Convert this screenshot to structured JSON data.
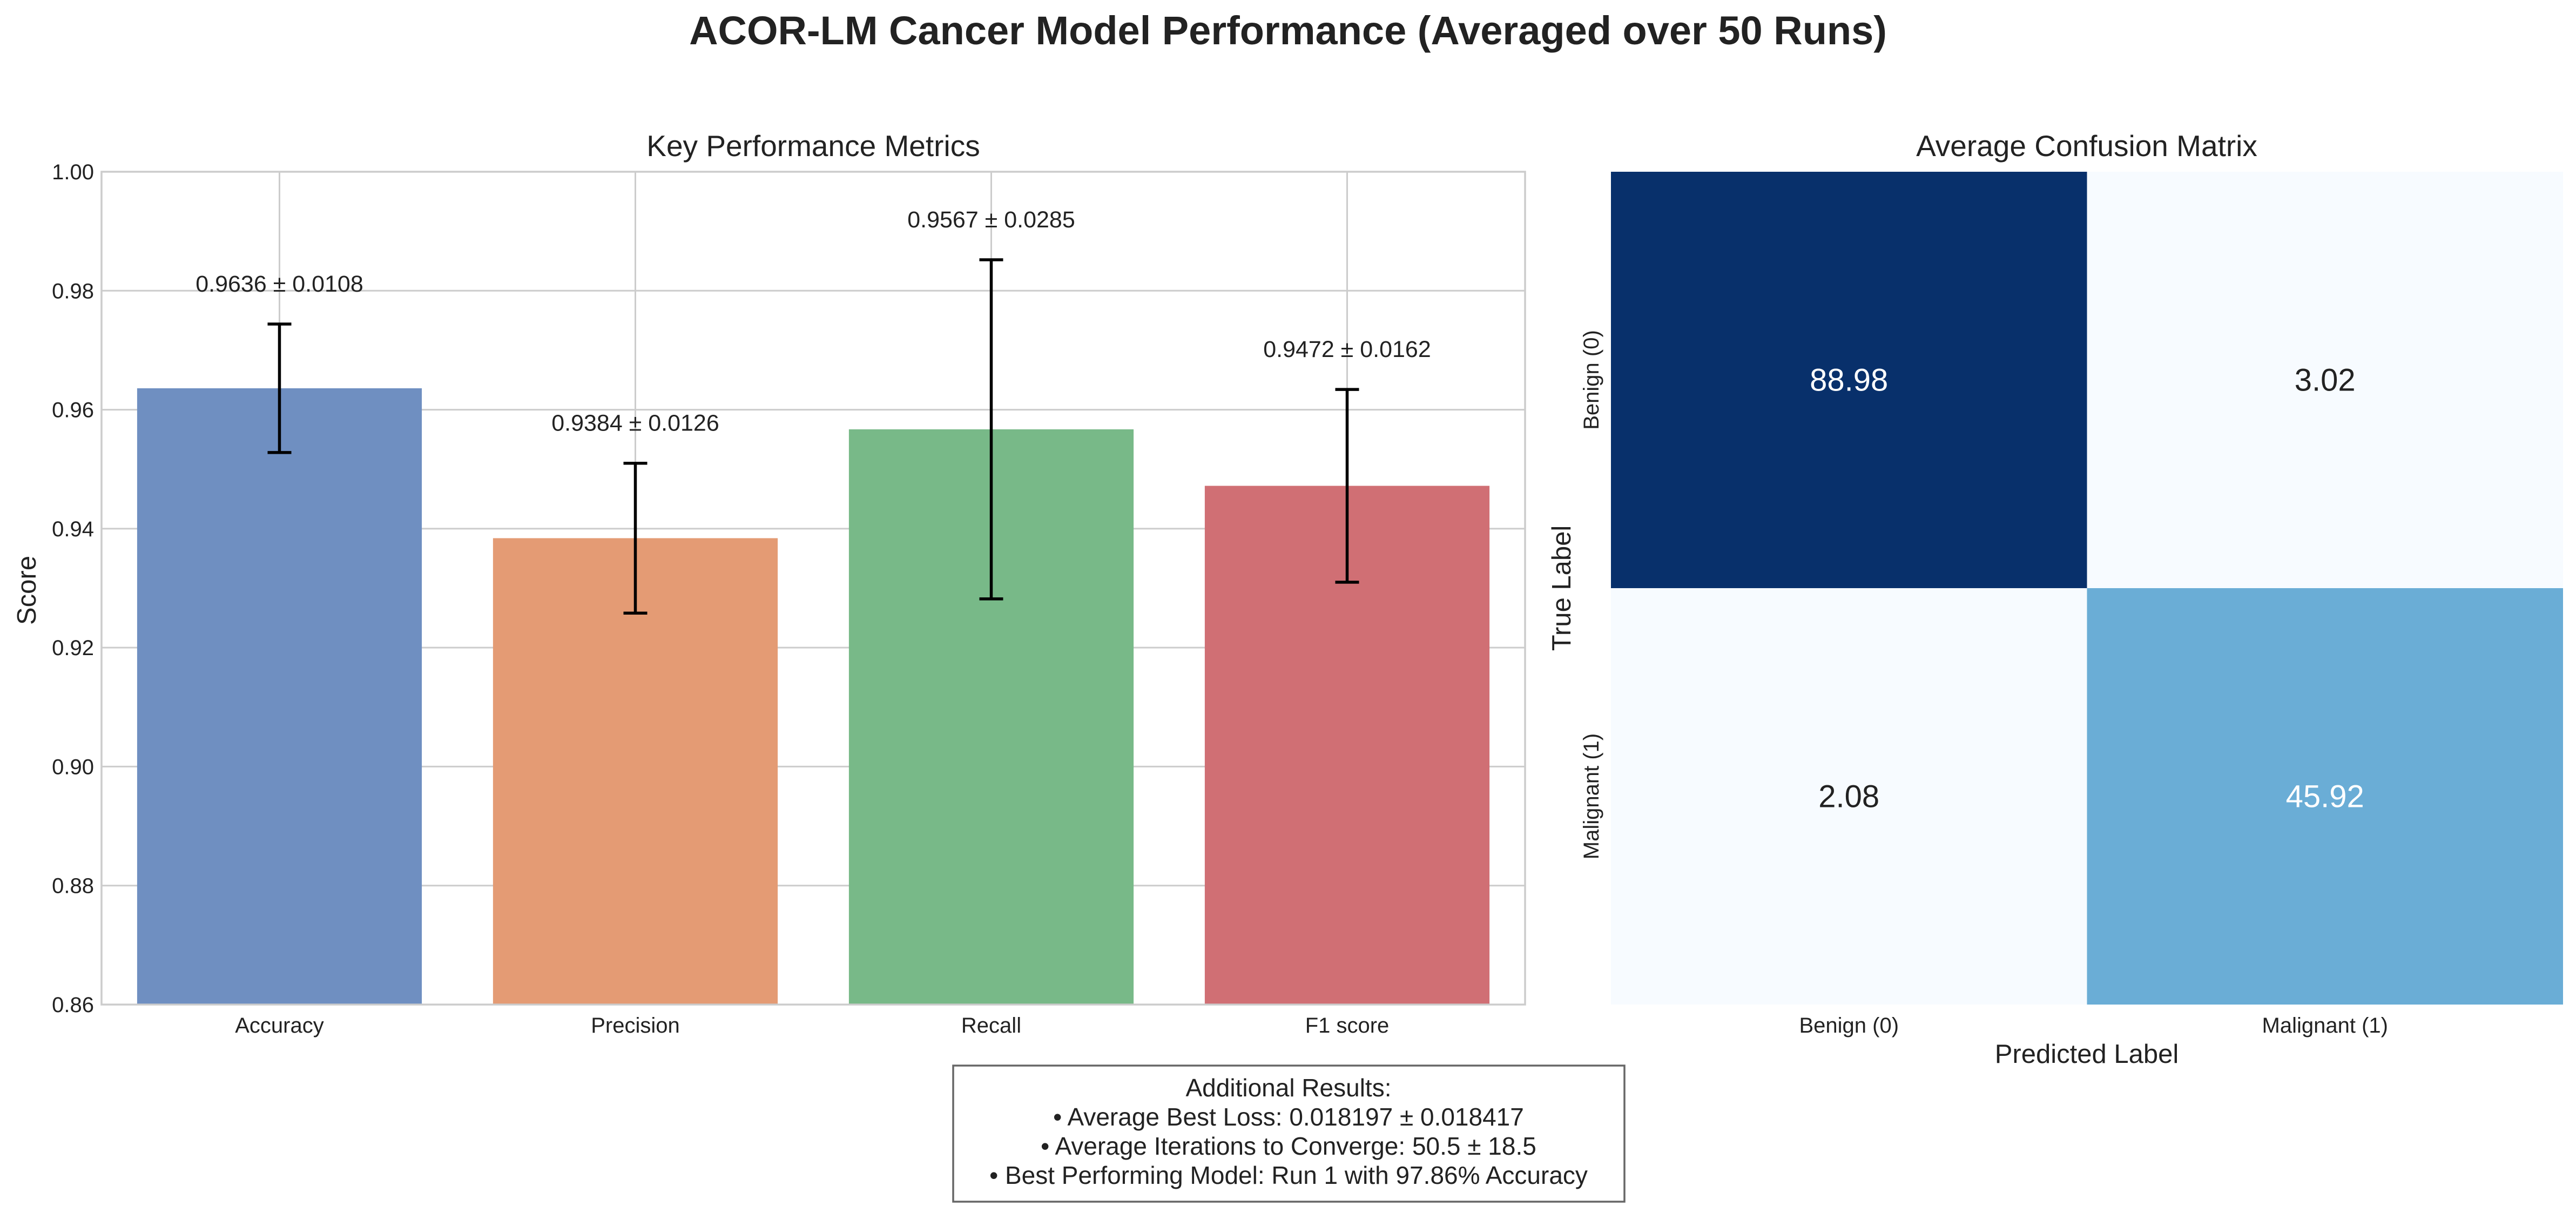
{
  "suptitle": "ACOR-LM Cancer Model Performance (Averaged over 50 Runs)",
  "chart_data": [
    {
      "type": "bar",
      "title": "Key Performance Metrics",
      "xlabel": "",
      "ylabel": "Score",
      "ylim": [
        0.86,
        1.0
      ],
      "yticks": [
        0.86,
        0.88,
        0.9,
        0.92,
        0.94,
        0.96,
        0.98,
        1.0
      ],
      "ytick_labels": [
        "0.86",
        "0.88",
        "0.90",
        "0.92",
        "0.94",
        "0.96",
        "0.98",
        "1.00"
      ],
      "grid": true,
      "categories": [
        "Accuracy",
        "Precision",
        "Recall",
        "F1 score"
      ],
      "values": [
        0.9636,
        0.9384,
        0.9567,
        0.9472
      ],
      "errors": [
        0.0108,
        0.0126,
        0.0285,
        0.0162
      ],
      "value_labels": [
        "0.9636 ± 0.0108",
        "0.9384 ± 0.0126",
        "0.9567 ± 0.0285",
        "0.9472 ± 0.0162"
      ],
      "colors": [
        "#6f8fc1",
        "#e49b74",
        "#78b988",
        "#d06f74"
      ]
    },
    {
      "type": "heatmap",
      "title": "Average Confusion Matrix",
      "xlabel": "Predicted Label",
      "ylabel": "True Label",
      "x_categories": [
        "Benign (0)",
        "Malignant (1)"
      ],
      "y_categories": [
        "Benign (0)",
        "Malignant (1)"
      ],
      "values": [
        [
          88.98,
          3.02
        ],
        [
          2.08,
          45.92
        ]
      ],
      "value_labels": [
        [
          "88.98",
          "3.02"
        ],
        [
          "2.08",
          "45.92"
        ]
      ],
      "cell_colors": [
        [
          "#08306b",
          "#f7fbff"
        ],
        [
          "#f7fbff",
          "#6aadd6"
        ]
      ],
      "text_colors": [
        [
          "#ffffff",
          "#222222"
        ],
        [
          "#222222",
          "#ffffff"
        ]
      ],
      "colormap": "Blues",
      "colorbar": false
    }
  ],
  "notes_box": {
    "lines": [
      "Additional Results:",
      "• Average Best Loss: 0.018197 ± 0.018417",
      "• Average Iterations to Converge: 50.5 ± 18.5",
      "• Best Performing Model: Run 1 with 97.86% Accuracy"
    ]
  }
}
